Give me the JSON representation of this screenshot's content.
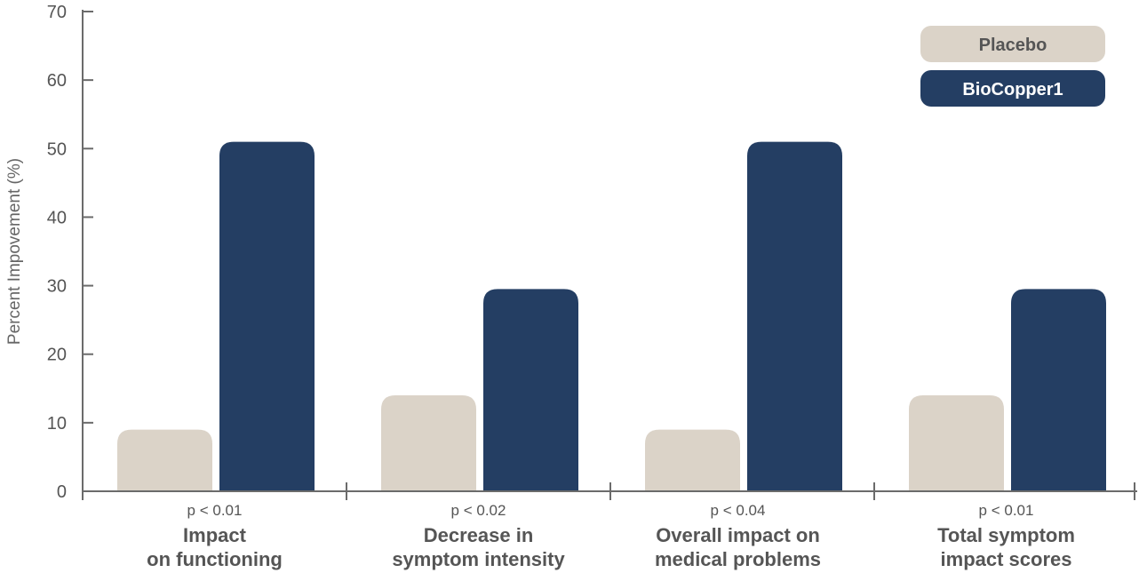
{
  "chart_data": {
    "type": "bar",
    "categories": [
      [
        "Impact",
        "on functioning"
      ],
      [
        "Decrease in",
        "symptom intensity"
      ],
      [
        "Overall impact on",
        "medical problems"
      ],
      [
        "Total symptom",
        "impact scores"
      ]
    ],
    "p_values": [
      "p < 0.01",
      "p < 0.02",
      "p < 0.04",
      "p < 0.01"
    ],
    "series": [
      {
        "name": "Placebo",
        "color": "#dbd3c8",
        "text_color": "#555555",
        "values": [
          9,
          14,
          9,
          14
        ]
      },
      {
        "name": "BioCopper1",
        "color": "#243e63",
        "text_color": "#ffffff",
        "values": [
          51,
          29.5,
          51,
          29.5
        ]
      }
    ],
    "ylabel": "Percent Impovement (%)",
    "ylim": [
      0,
      70
    ],
    "yticks": [
      "0",
      "10",
      "20",
      "30",
      "40",
      "50",
      "60",
      "70"
    ],
    "grid": false,
    "legend_position": "top-right"
  }
}
